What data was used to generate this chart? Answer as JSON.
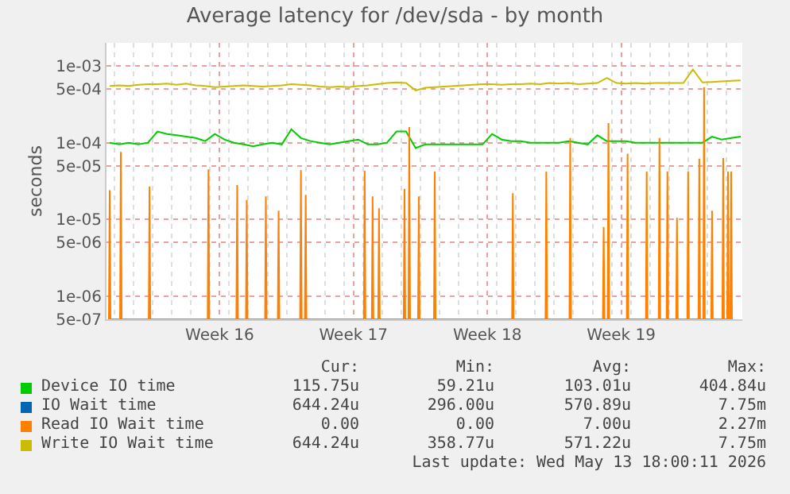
{
  "chart_data": {
    "type": "line",
    "title": "Average latency for /dev/sda - by month",
    "ylabel": "seconds",
    "x": [
      "2026-04-10T18:00",
      "2026-04-11T06:00",
      "2026-04-11T18:00",
      "2026-04-12T06:00",
      "2026-04-12T18:00",
      "2026-04-13T06:00",
      "2026-04-13T18:00",
      "2026-04-14T06:00",
      "2026-04-14T18:00",
      "2026-04-15T06:00",
      "2026-04-15T18:00",
      "2026-04-16T06:00",
      "2026-04-16T18:00",
      "2026-04-17T06:00",
      "2026-04-17T18:00",
      "2026-04-18T06:00",
      "2026-04-18T18:00",
      "2026-04-19T06:00",
      "2026-04-19T18:00",
      "2026-04-20T06:00",
      "2026-04-20T18:00",
      "2026-04-21T06:00",
      "2026-04-21T18:00",
      "2026-04-22T06:00",
      "2026-04-22T18:00",
      "2026-04-23T06:00",
      "2026-04-23T18:00",
      "2026-04-24T06:00",
      "2026-04-24T18:00",
      "2026-04-25T06:00",
      "2026-04-25T18:00",
      "2026-04-26T06:00",
      "2026-04-26T18:00",
      "2026-04-27T06:00",
      "2026-04-27T18:00",
      "2026-04-28T06:00",
      "2026-04-28T18:00",
      "2026-04-29T06:00",
      "2026-04-29T18:00",
      "2026-04-30T06:00",
      "2026-04-30T18:00",
      "2026-05-01T06:00",
      "2026-05-01T18:00",
      "2026-05-02T06:00",
      "2026-05-02T18:00",
      "2026-05-03T06:00",
      "2026-05-03T18:00",
      "2026-05-04T06:00",
      "2026-05-04T18:00",
      "2026-05-05T06:00",
      "2026-05-05T18:00",
      "2026-05-06T06:00",
      "2026-05-06T18:00",
      "2026-05-07T06:00",
      "2026-05-07T18:00",
      "2026-05-08T06:00",
      "2026-05-08T18:00",
      "2026-05-09T06:00",
      "2026-05-09T18:00",
      "2026-05-10T06:00",
      "2026-05-10T18:00",
      "2026-05-11T06:00",
      "2026-05-11T18:00",
      "2026-05-12T06:00",
      "2026-05-12T18:00",
      "2026-05-13T06:00",
      "2026-05-13T18:00"
    ],
    "series": [
      {
        "name": "Device IO time",
        "color": "#00cc00",
        "values": [
          0.0001,
          9.5e-05,
          0.0001,
          9.5e-05,
          0.0001,
          0.00014,
          0.00013,
          0.000125,
          0.00012,
          0.000115,
          0.000105,
          0.00013,
          0.00011,
          0.0001,
          9.5e-05,
          9e-05,
          9.5e-05,
          0.0001,
          9.5e-05,
          0.00015,
          0.000115,
          0.000105,
          0.0001,
          9.5e-05,
          0.0001,
          0.000105,
          0.00011,
          9.5e-05,
          9.5e-05,
          0.0001,
          0.00014,
          0.00014,
          8.5e-05,
          9.5e-05,
          9.5e-05,
          9.5e-05,
          9.5e-05,
          9.5e-05,
          9.5e-05,
          9.5e-05,
          0.00013,
          0.00011,
          0.000105,
          0.000105,
          0.0001,
          0.0001,
          0.0001,
          0.0001,
          0.000105,
          0.0001,
          9.5e-05,
          0.000125,
          0.000105,
          0.000105,
          0.000105,
          0.0001,
          0.0001,
          0.0001,
          0.0001,
          0.0001,
          0.0001,
          0.0001,
          0.0001,
          0.00012,
          0.00011,
          0.000115,
          0.00012
        ]
      },
      {
        "name": "IO Wait time",
        "color": "#0066b3",
        "values": [
          null,
          null,
          null,
          null,
          null,
          null,
          null,
          null,
          null,
          null,
          null,
          null,
          null,
          null,
          null,
          null,
          null,
          null,
          null,
          null,
          null,
          null,
          null,
          null,
          null,
          null,
          null,
          null,
          null,
          null,
          null,
          null,
          null,
          null,
          null,
          null,
          null,
          null,
          null,
          null,
          null,
          null,
          null,
          null,
          null,
          null,
          null,
          null,
          null,
          null,
          null,
          null,
          null,
          null,
          null,
          null,
          null,
          null,
          null,
          null,
          null,
          null,
          null,
          null,
          null,
          null,
          null
        ]
      },
      {
        "name": "Read IO Wait time",
        "color": "#ff8000",
        "x": [
          "2026-04-10T17:00",
          "2026-04-10T18:00",
          "2026-04-10T19:00",
          "2026-04-11T07:00",
          "2026-04-11T08:00",
          "2026-04-11T09:00",
          "2026-04-12T19:00",
          "2026-04-12T20:00",
          "2026-04-12T21:00",
          "2026-04-15T21:00",
          "2026-04-15T22:00",
          "2026-04-15T23:00",
          "2026-04-17T09:00",
          "2026-04-17T10:00",
          "2026-04-17T11:00",
          "2026-04-17T21:00",
          "2026-04-17T22:00",
          "2026-04-17T23:00",
          "2026-04-18T21:00",
          "2026-04-18T22:00",
          "2026-04-18T23:00",
          "2026-04-19T13:00",
          "2026-04-19T14:00",
          "2026-04-19T15:00",
          "2026-04-20T17:00",
          "2026-04-20T18:00",
          "2026-04-20T19:00",
          "2026-04-20T23:00",
          "2026-04-21T00:00",
          "2026-04-21T01:00",
          "2026-04-24T01:00",
          "2026-04-24T02:00",
          "2026-04-24T03:00",
          "2026-04-24T11:00",
          "2026-04-24T12:00",
          "2026-04-24T13:00",
          "2026-04-24T19:00",
          "2026-04-24T20:00",
          "2026-04-24T21:00",
          "2026-04-26T03:00",
          "2026-04-26T04:00",
          "2026-04-26T05:00",
          "2026-04-26T09:00",
          "2026-04-26T10:00",
          "2026-04-26T11:00",
          "2026-04-26T21:00",
          "2026-04-26T22:00",
          "2026-04-26T23:00",
          "2026-04-27T17:00",
          "2026-04-27T18:00",
          "2026-04-27T19:00",
          "2026-05-01T19:00",
          "2026-05-01T20:00",
          "2026-05-01T21:00",
          "2026-05-03T13:00",
          "2026-05-03T14:00",
          "2026-05-03T15:00",
          "2026-05-04T19:00",
          "2026-05-04T20:00",
          "2026-05-04T21:00",
          "2026-05-06T13:00",
          "2026-05-06T14:00",
          "2026-05-06T15:00",
          "2026-05-06T19:00",
          "2026-05-06T20:00",
          "2026-05-06T21:00",
          "2026-05-07T19:00",
          "2026-05-07T20:00",
          "2026-05-07T21:00",
          "2026-05-08T19:00",
          "2026-05-08T20:00",
          "2026-05-08T21:00",
          "2026-05-09T11:00",
          "2026-05-09T12:00",
          "2026-05-09T13:00",
          "2026-05-09T21:00",
          "2026-05-09T22:00",
          "2026-05-09T23:00",
          "2026-05-10T09:00",
          "2026-05-10T10:00",
          "2026-05-10T11:00",
          "2026-05-10T23:00",
          "2026-05-11T00:00",
          "2026-05-11T01:00",
          "2026-05-11T13:00",
          "2026-05-11T14:00",
          "2026-05-11T15:00",
          "2026-05-11T19:00",
          "2026-05-11T20:00",
          "2026-05-11T21:00",
          "2026-05-12T05:00",
          "2026-05-12T06:00",
          "2026-05-12T07:00",
          "2026-05-12T19:00",
          "2026-05-12T20:00",
          "2026-05-12T21:00",
          "2026-05-13T01:00",
          "2026-05-13T02:00",
          "2026-05-13T03:00",
          "2026-05-13T05:00",
          "2026-05-13T06:00",
          "2026-05-13T07:00"
        ],
        "values": [
          5e-07,
          2.4e-05,
          5e-07,
          5e-07,
          7.6e-05,
          5e-07,
          5e-07,
          2.7e-05,
          5e-07,
          5e-07,
          4.5e-05,
          5e-07,
          5e-07,
          2.8e-05,
          5e-07,
          5e-07,
          1.8e-05,
          5e-07,
          5e-07,
          2e-05,
          5e-07,
          5e-07,
          1.3e-05,
          5e-07,
          5e-07,
          4.4e-05,
          5e-07,
          5e-07,
          2.1e-05,
          5e-07,
          5e-07,
          4.3e-05,
          5e-07,
          5e-07,
          2e-05,
          5e-07,
          5e-07,
          1.4e-05,
          5e-07,
          5e-07,
          2.5e-05,
          5e-07,
          5e-07,
          0.00016,
          5e-07,
          5e-07,
          2e-05,
          5e-07,
          5e-07,
          4.2e-05,
          5e-07,
          5e-07,
          2.2e-05,
          5e-07,
          5e-07,
          4.2e-05,
          5e-07,
          5e-07,
          0.000115,
          5e-07,
          5e-07,
          8e-06,
          5e-07,
          5e-07,
          0.00018,
          5e-07,
          5e-07,
          7.2e-05,
          5e-07,
          5e-07,
          4.2e-05,
          5e-07,
          5e-07,
          0.000115,
          5e-07,
          5e-07,
          4.2e-05,
          5e-07,
          5e-07,
          1.05e-05,
          5e-07,
          5e-07,
          4.2e-05,
          5e-07,
          5e-07,
          6.2e-05,
          5e-07,
          5e-07,
          0.00053,
          5e-07,
          5e-07,
          1.3e-05,
          5e-07,
          5e-07,
          6.3e-05,
          5e-07,
          5e-07,
          4.2e-05,
          5e-07,
          5e-07,
          4.2e-05,
          5e-07
        ]
      },
      {
        "name": "Write IO Wait time",
        "color": "#ccbb00",
        "values": [
          0.00055,
          0.00056,
          0.00055,
          0.00057,
          0.00058,
          0.00058,
          0.00059,
          0.00057,
          0.00059,
          0.00056,
          0.00055,
          0.00053,
          0.00054,
          0.00055,
          0.00056,
          0.00055,
          0.00054,
          0.00055,
          0.00056,
          0.00058,
          0.00057,
          0.00056,
          0.00054,
          0.00053,
          0.00054,
          0.00053,
          0.00055,
          0.00056,
          0.00058,
          0.0006,
          0.00061,
          0.0006,
          0.00048,
          0.00052,
          0.00053,
          0.00054,
          0.00055,
          0.00056,
          0.00057,
          0.00058,
          0.00058,
          0.00057,
          0.00058,
          0.00058,
          0.00059,
          0.00058,
          0.0006,
          0.00059,
          0.0006,
          0.00058,
          0.00059,
          0.0006,
          0.0007,
          0.0006,
          0.00059,
          0.0006,
          0.00059,
          0.0006,
          0.0006,
          0.0006,
          0.0006,
          0.0009,
          0.00061,
          0.00062,
          0.00063,
          0.00064,
          0.00065
        ]
      }
    ],
    "xlim": [
      "2026-04-10T14:00",
      "2026-05-13T20:00"
    ],
    "xticks": [
      {
        "value": "2026-04-16T12:00",
        "label": "Week 16"
      },
      {
        "value": "2026-04-23T12:00",
        "label": "Week 17"
      },
      {
        "value": "2026-04-30T12:00",
        "label": "Week 18"
      },
      {
        "value": "2026-05-07T12:00",
        "label": "Week 19"
      }
    ],
    "ylim": [
      5e-07,
      0.002
    ],
    "log": true,
    "yticks": [
      {
        "value": 5e-07,
        "label": "5e-07"
      },
      {
        "value": 1e-06,
        "label": "1e-06"
      },
      {
        "value": 5e-06,
        "label": "5e-06"
      },
      {
        "value": 1e-05,
        "label": "1e-05"
      },
      {
        "value": 5e-05,
        "label": "5e-05"
      },
      {
        "value": 0.0001,
        "label": "1e-04"
      },
      {
        "value": 0.0005,
        "label": "5e-04"
      },
      {
        "value": 0.001,
        "label": "1e-03"
      }
    ],
    "grid": true,
    "legend": "bottom",
    "annotations": [
      "Cur:",
      "Min:",
      "Avg:",
      "Max:",
      "115.75u",
      "59.21u",
      "103.01u",
      "404.84u",
      "644.24u",
      "296.00u",
      "570.89u",
      "7.75m",
      "0.00",
      "0.00",
      "7.00u",
      "2.27m",
      "644.24u",
      "358.77u",
      "571.22u",
      "7.75m",
      "Last update: Wed May 13 18:00:11 2026"
    ]
  }
}
